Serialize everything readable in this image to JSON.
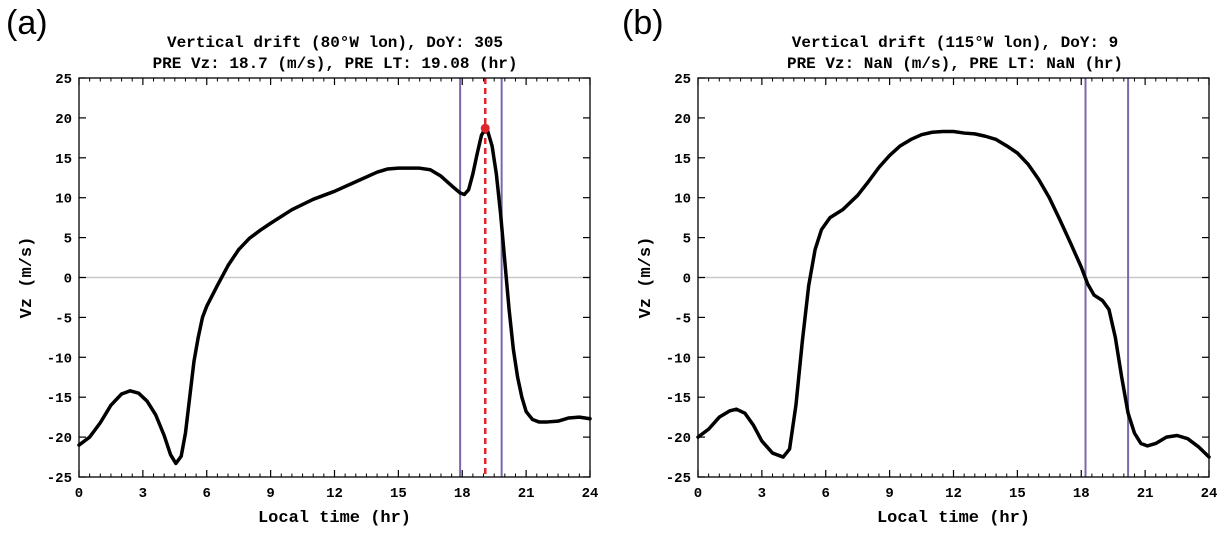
{
  "chart_data": [
    {
      "type": "line",
      "panel_label": "(a)",
      "title_line1": "Vertical drift (80°W lon), DoY: 305",
      "title_line2": "PRE Vz: 18.7 (m/s), PRE LT: 19.08 (hr)",
      "xlabel": "Local time (hr)",
      "ylabel": "Vz (m/s)",
      "xlim": [
        0,
        24
      ],
      "ylim": [
        -25,
        25
      ],
      "x_ticks": [
        0,
        3,
        6,
        9,
        12,
        15,
        18,
        21,
        24
      ],
      "y_ticks": [
        -25,
        -20,
        -15,
        -10,
        -5,
        0,
        5,
        10,
        15,
        20,
        25
      ],
      "zero_line": true,
      "vertical_lines": [
        17.9,
        19.85
      ],
      "vertical_line_color": "#7b68a8",
      "pre_marker": {
        "x": 19.08,
        "y": 18.7,
        "color": "#e0262b"
      },
      "series": [
        {
          "color": "#000000",
          "points": [
            [
              0,
              -21
            ],
            [
              0.5,
              -20
            ],
            [
              1,
              -18.2
            ],
            [
              1.5,
              -16
            ],
            [
              2,
              -14.6
            ],
            [
              2.4,
              -14.2
            ],
            [
              2.8,
              -14.5
            ],
            [
              3.2,
              -15.5
            ],
            [
              3.6,
              -17.2
            ],
            [
              4,
              -19.8
            ],
            [
              4.3,
              -22.2
            ],
            [
              4.55,
              -23.3
            ],
            [
              4.8,
              -22.4
            ],
            [
              5,
              -19.5
            ],
            [
              5.2,
              -15
            ],
            [
              5.4,
              -10.5
            ],
            [
              5.6,
              -7.5
            ],
            [
              5.8,
              -5
            ],
            [
              6,
              -3.6
            ],
            [
              6.5,
              -1
            ],
            [
              7,
              1.5
            ],
            [
              7.5,
              3.5
            ],
            [
              8,
              4.9
            ],
            [
              8.5,
              5.9
            ],
            [
              9,
              6.8
            ],
            [
              10,
              8.5
            ],
            [
              11,
              9.8
            ],
            [
              12,
              10.8
            ],
            [
              13,
              12
            ],
            [
              14,
              13.2
            ],
            [
              14.5,
              13.6
            ],
            [
              15,
              13.7
            ],
            [
              16,
              13.7
            ],
            [
              16.5,
              13.5
            ],
            [
              17,
              12.7
            ],
            [
              17.5,
              11.5
            ],
            [
              17.9,
              10.6
            ],
            [
              18.1,
              10.4
            ],
            [
              18.3,
              11
            ],
            [
              18.5,
              13
            ],
            [
              18.7,
              15.5
            ],
            [
              18.9,
              17.8
            ],
            [
              19.08,
              18.7
            ],
            [
              19.2,
              18.3
            ],
            [
              19.4,
              16.5
            ],
            [
              19.6,
              13
            ],
            [
              19.8,
              8
            ],
            [
              20,
              2
            ],
            [
              20.2,
              -4
            ],
            [
              20.4,
              -9
            ],
            [
              20.6,
              -12.5
            ],
            [
              20.8,
              -15
            ],
            [
              21,
              -16.8
            ],
            [
              21.3,
              -17.8
            ],
            [
              21.6,
              -18.1
            ],
            [
              22,
              -18.1
            ],
            [
              22.5,
              -18
            ],
            [
              23,
              -17.6
            ],
            [
              23.5,
              -17.5
            ],
            [
              24,
              -17.7
            ]
          ]
        }
      ]
    },
    {
      "type": "line",
      "panel_label": "(b)",
      "title_line1": "Vertical drift (115°W lon), DoY: 9",
      "title_line2": "PRE Vz: NaN (m/s), PRE LT: NaN (hr)",
      "xlabel": "Local time (hr)",
      "ylabel": "Vz (m/s)",
      "xlim": [
        0,
        24
      ],
      "ylim": [
        -25,
        25
      ],
      "x_ticks": [
        0,
        3,
        6,
        9,
        12,
        15,
        18,
        21,
        24
      ],
      "y_ticks": [
        -25,
        -20,
        -15,
        -10,
        -5,
        0,
        5,
        10,
        15,
        20,
        25
      ],
      "zero_line": true,
      "vertical_lines": [
        18.2,
        20.2
      ],
      "vertical_line_color": "#7b68a8",
      "series": [
        {
          "color": "#000000",
          "points": [
            [
              0,
              -20
            ],
            [
              0.5,
              -19
            ],
            [
              1,
              -17.5
            ],
            [
              1.5,
              -16.7
            ],
            [
              1.8,
              -16.5
            ],
            [
              2.2,
              -17
            ],
            [
              2.6,
              -18.5
            ],
            [
              3,
              -20.5
            ],
            [
              3.5,
              -22
            ],
            [
              4,
              -22.5
            ],
            [
              4.3,
              -21.5
            ],
            [
              4.6,
              -16
            ],
            [
              4.9,
              -8
            ],
            [
              5.2,
              -1
            ],
            [
              5.5,
              3.5
            ],
            [
              5.8,
              6
            ],
            [
              6.2,
              7.5
            ],
            [
              6.8,
              8.5
            ],
            [
              7.5,
              10.3
            ],
            [
              8,
              12
            ],
            [
              8.5,
              13.8
            ],
            [
              9,
              15.3
            ],
            [
              9.5,
              16.5
            ],
            [
              10,
              17.3
            ],
            [
              10.5,
              17.9
            ],
            [
              11,
              18.2
            ],
            [
              11.5,
              18.3
            ],
            [
              12,
              18.3
            ],
            [
              12.5,
              18.1
            ],
            [
              13,
              18
            ],
            [
              13.5,
              17.7
            ],
            [
              14,
              17.3
            ],
            [
              14.5,
              16.5
            ],
            [
              15,
              15.6
            ],
            [
              15.5,
              14.2
            ],
            [
              16,
              12.3
            ],
            [
              16.5,
              10
            ],
            [
              17,
              7.2
            ],
            [
              17.5,
              4.3
            ],
            [
              18,
              1.3
            ],
            [
              18.3,
              -0.8
            ],
            [
              18.6,
              -2.2
            ],
            [
              19,
              -2.9
            ],
            [
              19.3,
              -4
            ],
            [
              19.6,
              -7.5
            ],
            [
              19.9,
              -12.5
            ],
            [
              20.2,
              -17
            ],
            [
              20.5,
              -19.5
            ],
            [
              20.8,
              -20.8
            ],
            [
              21.1,
              -21.1
            ],
            [
              21.5,
              -20.8
            ],
            [
              22,
              -20
            ],
            [
              22.5,
              -19.8
            ],
            [
              23,
              -20.2
            ],
            [
              23.5,
              -21.2
            ],
            [
              24,
              -22.5
            ]
          ]
        }
      ]
    }
  ]
}
